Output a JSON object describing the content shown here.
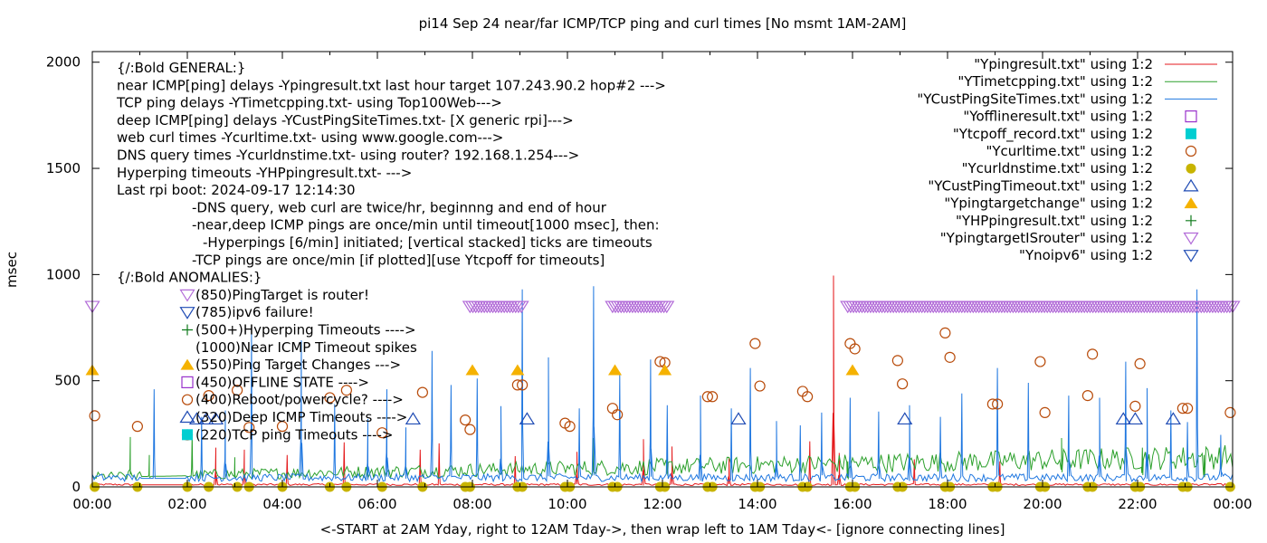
{
  "chart_data": {
    "type": "line",
    "title": "pi14 Sep 24  near/far ICMP/TCP ping and curl times [No msmt 1AM-2AM]",
    "ylabel": "msec",
    "xlabel": "<-START at 2AM Yday, right to 12AM Tday->, then wrap left to 1AM Tday<- [ignore connecting lines]",
    "x_unit": "hours",
    "xlim": [
      0,
      24
    ],
    "ylim": [
      0,
      2050
    ],
    "grid": false,
    "legend_position": "top-right",
    "x_tick_labels": [
      "00:00",
      "02:00",
      "04:00",
      "06:00",
      "08:00",
      "10:00",
      "12:00",
      "14:00",
      "16:00",
      "18:00",
      "20:00",
      "22:00",
      "00:00"
    ],
    "x_tick_hours": [
      0,
      2,
      4,
      6,
      8,
      10,
      12,
      14,
      16,
      18,
      20,
      22,
      24
    ],
    "y_ticks": [
      0,
      500,
      1000,
      1500,
      2000
    ],
    "annotations": [
      "{/:Bold GENERAL:}",
      "near ICMP[ping] delays -Ypingresult.txt last hour target 107.243.90.2 hop#2 --->",
      "TCP ping delays -YTimetcpping.txt- using Top100Web--->",
      "deep ICMP[ping] delays -YCustPingSiteTimes.txt- [X generic rpi]--->",
      "web curl times -Ycurltime.txt- using www.google.com--->",
      "DNS query times -Ycurldnstime.txt- using router? 192.168.1.254--->",
      "Hyperping timeouts -YHPpingresult.txt- --->",
      "Last rpi boot: 2024-09-17 12:14:30",
      "-DNS query, web curl are twice/hr, beginnng and end of hour",
      "-near,deep ICMP pings are once/min until timeout[1000 msec], then:",
      "-Hyperpings [6/min] initiated; [vertical stacked] ticks are timeouts",
      "-TCP pings are once/min [if plotted][use Ytcpoff for timeouts]",
      "{/:Bold ANOMALIES:}",
      "(850)PingTarget is router!",
      "(785)ipv6 failure!",
      "(500+)Hyperping Timeouts ---->",
      "(1000)Near ICMP Timeout spikes",
      "(550)Ping Target Changes --->",
      "(450)OFFLINE STATE ---->",
      "(400)Reboot/powercycle? ---->",
      "(320)Deep ICMP Timeouts ---->",
      "(220)TCP ping Timeouts ---->"
    ],
    "series": [
      {
        "name": "\"Ypingresult.txt\" using 1:2",
        "style": "line",
        "color": "#e41a1c",
        "baseline": 10,
        "spikes": [
          [
            2.6,
            185
          ],
          [
            3.2,
            175
          ],
          [
            4.1,
            150
          ],
          [
            5.3,
            210
          ],
          [
            6.9,
            175
          ],
          [
            7.3,
            205
          ],
          [
            8.9,
            145
          ],
          [
            10.2,
            165
          ],
          [
            11.6,
            225
          ],
          [
            12.2,
            190
          ],
          [
            13.4,
            140
          ],
          [
            15.1,
            215
          ],
          [
            15.6,
            995
          ],
          [
            15.72,
            160
          ],
          [
            17.3,
            130
          ],
          [
            19.1,
            120
          ]
        ]
      },
      {
        "name": "\"YTimetcpping.txt\" using 1:2",
        "style": "line",
        "color": "#2ca02c",
        "start": [
          0,
          45
        ],
        "end": [
          24,
          130
        ],
        "spikes": [
          [
            0.8,
            235
          ],
          [
            1.2,
            150
          ],
          [
            2.1,
            250
          ],
          [
            3.0,
            140
          ],
          [
            10.55,
            230
          ],
          [
            12.1,
            175
          ],
          [
            15.9,
            120
          ],
          [
            20.4,
            230
          ],
          [
            22.1,
            185
          ],
          [
            23.4,
            150
          ]
        ]
      },
      {
        "name": "\"YCustPingSiteTimes.txt\" using 1:2",
        "style": "line",
        "color": "#1f77e0",
        "baseline": 40,
        "spikes": [
          [
            1.3,
            460
          ],
          [
            2.3,
            330
          ],
          [
            2.8,
            360
          ],
          [
            3.35,
            720
          ],
          [
            4.4,
            690
          ],
          [
            5.1,
            390
          ],
          [
            5.8,
            320
          ],
          [
            6.2,
            460
          ],
          [
            6.6,
            280
          ],
          [
            7.15,
            640
          ],
          [
            7.55,
            480
          ],
          [
            8.1,
            510
          ],
          [
            8.6,
            380
          ],
          [
            9.05,
            930
          ],
          [
            9.6,
            610
          ],
          [
            10.25,
            370
          ],
          [
            10.55,
            945
          ],
          [
            11.1,
            530
          ],
          [
            11.75,
            600
          ],
          [
            12.1,
            385
          ],
          [
            12.8,
            430
          ],
          [
            13.45,
            370
          ],
          [
            13.85,
            560
          ],
          [
            14.4,
            310
          ],
          [
            14.9,
            290
          ],
          [
            15.35,
            350
          ],
          [
            15.95,
            420
          ],
          [
            16.55,
            355
          ],
          [
            17.2,
            385
          ],
          [
            17.85,
            330
          ],
          [
            18.3,
            440
          ],
          [
            19.05,
            560
          ],
          [
            19.7,
            490
          ],
          [
            20.55,
            430
          ],
          [
            21.2,
            420
          ],
          [
            21.75,
            590
          ],
          [
            22.2,
            465
          ],
          [
            22.7,
            360
          ],
          [
            23.05,
            305
          ],
          [
            23.25,
            930
          ],
          [
            23.75,
            245
          ]
        ]
      },
      {
        "name": "\"Yofflineresult.txt\" using 1:2",
        "style": "open-square",
        "color": "#9932cc",
        "points": []
      },
      {
        "name": "\"Ytcpoff_record.txt\" using 1:2",
        "style": "filled-square",
        "color": "#00ced1",
        "points": []
      },
      {
        "name": "\"Ycurltime.txt\" using 1:2",
        "style": "open-circle",
        "color": "#b84b0a",
        "points": [
          [
            0.05,
            335
          ],
          [
            0.95,
            285
          ],
          [
            2.0,
            245
          ],
          [
            2.45,
            430
          ],
          [
            3.05,
            455
          ],
          [
            3.3,
            280
          ],
          [
            4.0,
            285
          ],
          [
            5.0,
            420
          ],
          [
            5.35,
            455
          ],
          [
            6.1,
            255
          ],
          [
            6.95,
            445
          ],
          [
            7.85,
            315
          ],
          [
            7.95,
            270
          ],
          [
            8.95,
            480
          ],
          [
            9.05,
            480
          ],
          [
            9.95,
            300
          ],
          [
            10.05,
            285
          ],
          [
            10.95,
            370
          ],
          [
            11.05,
            340
          ],
          [
            11.95,
            590
          ],
          [
            12.05,
            585
          ],
          [
            12.95,
            425
          ],
          [
            13.05,
            425
          ],
          [
            13.95,
            675
          ],
          [
            14.05,
            475
          ],
          [
            14.95,
            450
          ],
          [
            15.05,
            425
          ],
          [
            15.95,
            675
          ],
          [
            16.05,
            650
          ],
          [
            16.95,
            595
          ],
          [
            17.05,
            485
          ],
          [
            17.95,
            725
          ],
          [
            18.05,
            610
          ],
          [
            18.95,
            390
          ],
          [
            19.05,
            390
          ],
          [
            19.95,
            590
          ],
          [
            20.05,
            350
          ],
          [
            20.95,
            430
          ],
          [
            21.05,
            625
          ],
          [
            21.95,
            380
          ],
          [
            22.05,
            580
          ],
          [
            22.95,
            370
          ],
          [
            23.05,
            370
          ],
          [
            23.95,
            350
          ]
        ]
      },
      {
        "name": "\"Ycurldnstime.txt\" using 1:2",
        "style": "filled-circle",
        "color": "#c8b400",
        "points": [
          [
            0.05,
            0
          ],
          [
            0.95,
            0
          ],
          [
            2.0,
            0
          ],
          [
            2.45,
            0
          ],
          [
            3.05,
            0
          ],
          [
            3.3,
            0
          ],
          [
            4.0,
            0
          ],
          [
            5.0,
            0
          ],
          [
            5.35,
            0
          ],
          [
            6.1,
            0
          ],
          [
            6.95,
            0
          ],
          [
            7.85,
            0
          ],
          [
            7.95,
            0
          ],
          [
            8.95,
            0
          ],
          [
            9.05,
            0
          ],
          [
            9.95,
            0
          ],
          [
            10.05,
            0
          ],
          [
            10.95,
            0
          ],
          [
            11.05,
            0
          ],
          [
            11.95,
            0
          ],
          [
            12.05,
            0
          ],
          [
            12.95,
            0
          ],
          [
            13.05,
            0
          ],
          [
            13.95,
            0
          ],
          [
            14.05,
            0
          ],
          [
            14.95,
            0
          ],
          [
            15.05,
            0
          ],
          [
            15.95,
            0
          ],
          [
            16.05,
            0
          ],
          [
            16.95,
            0
          ],
          [
            17.05,
            0
          ],
          [
            17.95,
            0
          ],
          [
            18.05,
            0
          ],
          [
            18.95,
            0
          ],
          [
            19.05,
            0
          ],
          [
            19.95,
            0
          ],
          [
            20.05,
            0
          ],
          [
            20.95,
            0
          ],
          [
            21.05,
            0
          ],
          [
            21.95,
            0
          ],
          [
            22.05,
            0
          ],
          [
            22.95,
            0
          ],
          [
            23.05,
            0
          ],
          [
            23.95,
            0
          ]
        ]
      },
      {
        "name": "\"YCustPingTimeout.txt\" using 1:2",
        "style": "open-triangle",
        "color": "#1f4bb4",
        "points": [
          [
            2.2,
            320
          ],
          [
            2.4,
            320
          ],
          [
            2.6,
            320
          ],
          [
            6.75,
            320
          ],
          [
            9.15,
            320
          ],
          [
            13.6,
            320
          ],
          [
            17.1,
            320
          ],
          [
            21.7,
            320
          ],
          [
            21.95,
            320
          ],
          [
            22.75,
            320
          ]
        ]
      },
      {
        "name": "\"Ypingtargetchange\" using 1:2",
        "style": "filled-triangle",
        "color": "#f5b200",
        "points": [
          [
            0.0,
            550
          ],
          [
            8.0,
            550
          ],
          [
            8.95,
            550
          ],
          [
            11.0,
            550
          ],
          [
            12.05,
            550
          ],
          [
            16.0,
            550
          ]
        ]
      },
      {
        "name": "\"YHPpingresult.txt\" using 1:2",
        "style": "plus",
        "color": "#0e7a1a",
        "points": []
      },
      {
        "name": "\"YpingtargetISrouter\" using 1:2",
        "style": "open-tri-down",
        "color": "#b26bd8",
        "points": [
          [
            0.0,
            850
          ]
        ],
        "bands": [
          [
            7.95,
            9.05,
            850
          ],
          [
            10.95,
            12.1,
            850
          ],
          [
            15.9,
            24.0,
            850
          ]
        ]
      },
      {
        "name": "\"Ynoipv6\" using 1:2",
        "style": "open-tri-down",
        "color": "#1f4bb4",
        "points": []
      }
    ]
  }
}
